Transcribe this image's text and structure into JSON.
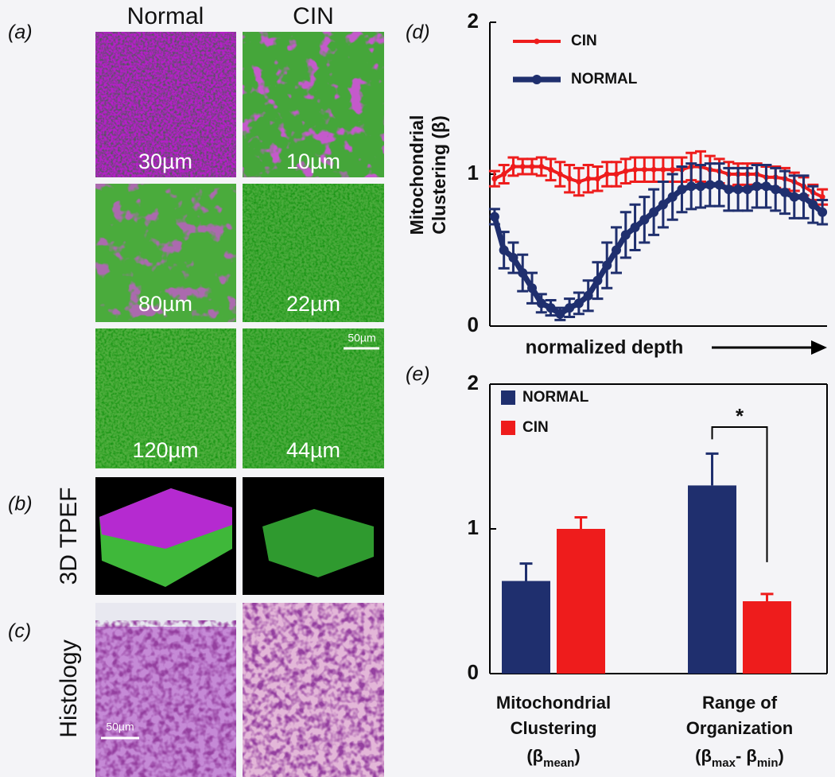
{
  "panels": {
    "labels": [
      "(a)",
      "(b)",
      "(c)",
      "(d)",
      "(e)"
    ],
    "columns": [
      "Normal",
      "CIN"
    ],
    "depths": [
      [
        "30µm",
        "10µm"
      ],
      [
        "80µm",
        "22µm"
      ],
      [
        "120µm",
        "44µm"
      ]
    ],
    "row_labels": [
      "3D TPEF",
      "Histology"
    ],
    "scale_bars": [
      "50µm",
      "50µm"
    ]
  },
  "chart_data": [
    {
      "type": "line",
      "y_label": "Mitochondrial Clustering (β)",
      "x_label": "normalized depth",
      "ylim": [
        0,
        2
      ],
      "yticks": [
        0,
        1,
        2
      ],
      "series": [
        {
          "name": "CIN",
          "color": "#ee1c1c",
          "values": [
            0.97,
            1.0,
            1.05,
            1.05,
            1.05,
            1.05,
            1.03,
            1.0,
            0.97,
            0.95,
            0.97,
            0.97,
            1.0,
            1.0,
            1.02,
            1.03,
            1.03,
            1.03,
            1.03,
            1.03,
            1.03,
            1.05,
            1.05,
            1.03,
            1.02,
            1.0,
            1.0,
            1.0,
            1.0,
            0.98,
            0.98,
            0.97,
            0.95,
            0.92,
            0.88,
            0.85
          ],
          "errors": [
            0.05,
            0.06,
            0.06,
            0.05,
            0.05,
            0.06,
            0.07,
            0.08,
            0.09,
            0.09,
            0.09,
            0.08,
            0.08,
            0.08,
            0.08,
            0.08,
            0.08,
            0.08,
            0.08,
            0.08,
            0.08,
            0.09,
            0.1,
            0.09,
            0.08,
            0.08,
            0.07,
            0.07,
            0.07,
            0.07,
            0.07,
            0.07,
            0.06,
            0.06,
            0.05,
            0.05
          ]
        },
        {
          "name": "NORMAL",
          "color": "#1f2f6e",
          "values": [
            0.72,
            0.5,
            0.45,
            0.35,
            0.25,
            0.15,
            0.12,
            0.08,
            0.12,
            0.15,
            0.2,
            0.3,
            0.4,
            0.5,
            0.6,
            0.65,
            0.7,
            0.75,
            0.8,
            0.85,
            0.9,
            0.92,
            0.92,
            0.93,
            0.93,
            0.9,
            0.9,
            0.9,
            0.92,
            0.92,
            0.9,
            0.88,
            0.85,
            0.85,
            0.8,
            0.75
          ],
          "errors": [
            0.05,
            0.12,
            0.1,
            0.12,
            0.1,
            0.06,
            0.05,
            0.04,
            0.06,
            0.07,
            0.1,
            0.12,
            0.15,
            0.15,
            0.15,
            0.15,
            0.15,
            0.15,
            0.15,
            0.15,
            0.15,
            0.15,
            0.14,
            0.14,
            0.14,
            0.14,
            0.14,
            0.14,
            0.14,
            0.14,
            0.14,
            0.14,
            0.14,
            0.14,
            0.12,
            0.08
          ]
        }
      ]
    },
    {
      "type": "bar",
      "categories": [
        "Mitochondrial Clustering",
        "Range of Organization"
      ],
      "category_sublabels": [
        [
          "(β",
          "mean",
          ")"
        ],
        [
          "(β",
          "max",
          "- β",
          "min",
          ")"
        ]
      ],
      "ylim": [
        0,
        2
      ],
      "yticks": [
        0,
        1,
        2
      ],
      "annotation": "*",
      "series": [
        {
          "name": "NORMAL",
          "color": "#1f2f6e",
          "values": [
            0.64,
            1.3
          ],
          "errors": [
            0.12,
            0.22
          ]
        },
        {
          "name": "CIN",
          "color": "#ee1c1c",
          "values": [
            1.0,
            0.5
          ],
          "errors": [
            0.08,
            0.05
          ]
        }
      ]
    }
  ]
}
